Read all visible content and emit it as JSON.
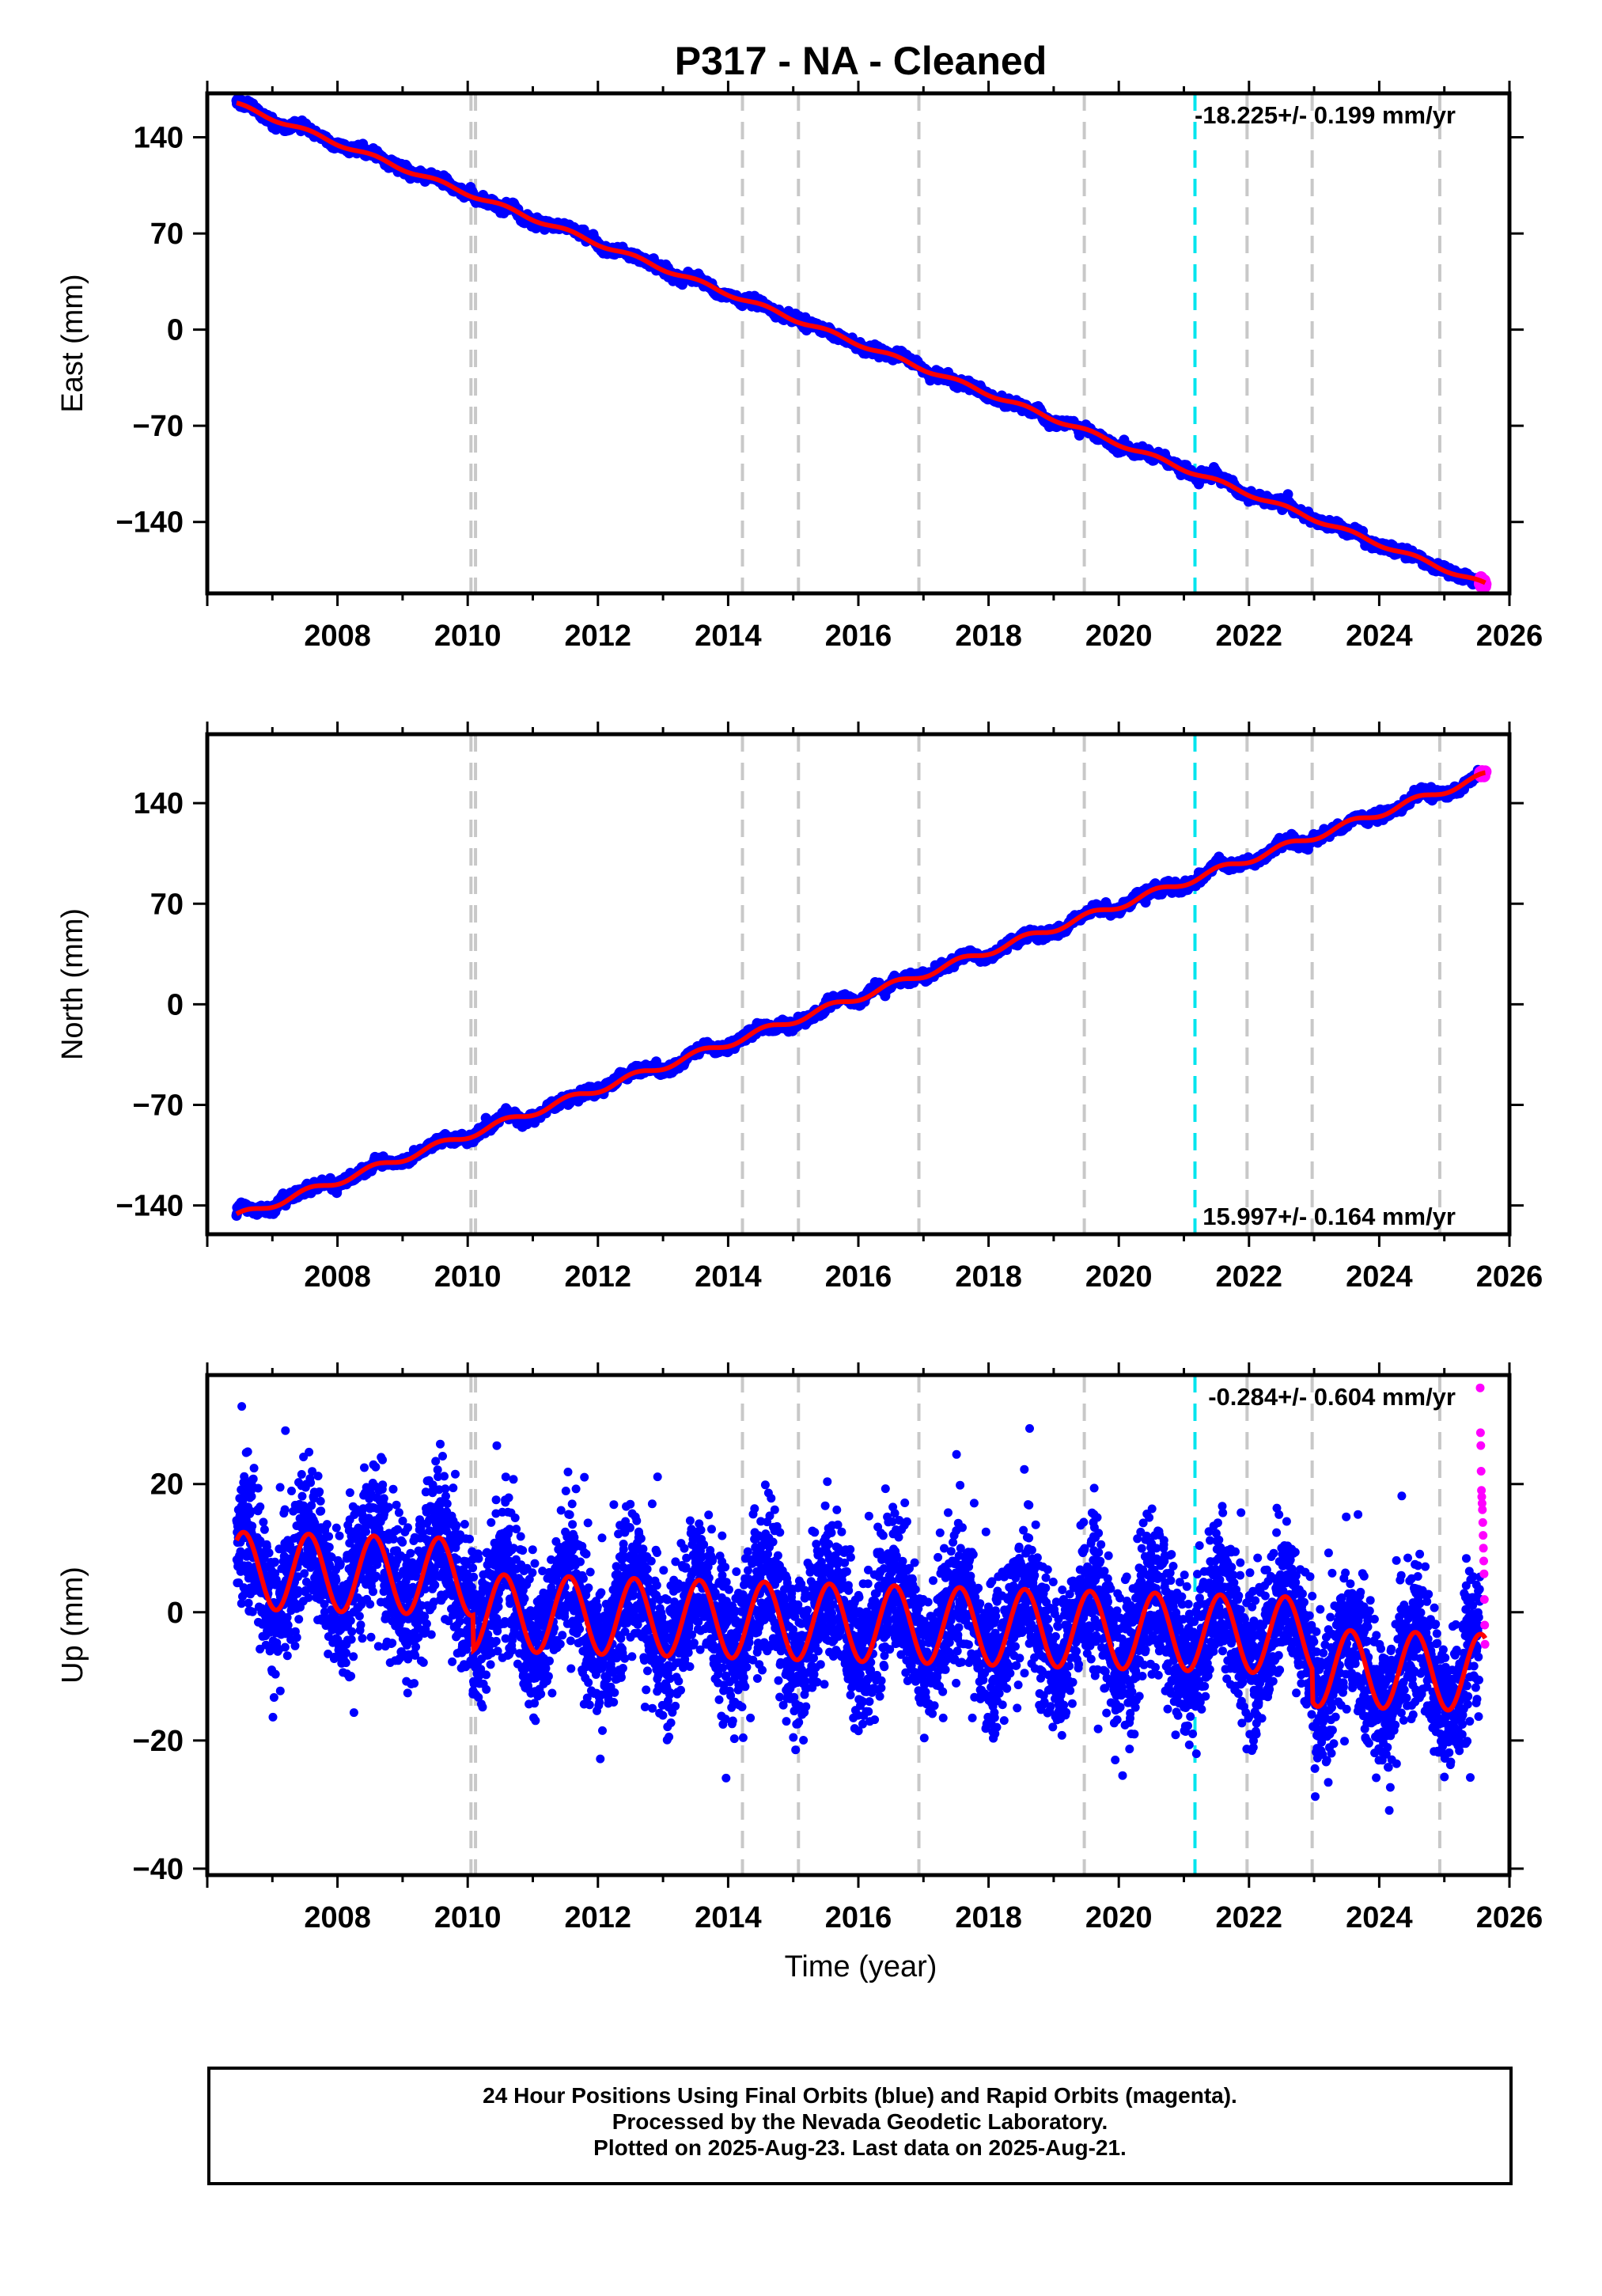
{
  "title": "P317  - NA - Cleaned",
  "xlabel": "Time (year)",
  "footer": {
    "line1": "24 Hour Positions Using Final Orbits (blue) and Rapid Orbits (magenta).",
    "line2": "Processed by the Nevada Geodetic Laboratory.",
    "line3": "Plotted on 2025-Aug-23. Last data on 2025-Aug-21."
  },
  "colors": {
    "final_orbits": "#0000ff",
    "rapid_orbits": "#ff00ff",
    "model_fit": "#ff0000",
    "event_gray": "#c8c8c8",
    "event_cyan": "#00e5ee"
  },
  "chart_data": [
    {
      "type": "scatter",
      "component": "east",
      "ylabel": "East (mm)",
      "rate_label": "-18.225+/- 0.199 mm/yr",
      "xlim": [
        2006.0,
        2026.0
      ],
      "ylim": [
        -192,
        172
      ],
      "xticks": [
        2008,
        2010,
        2012,
        2014,
        2016,
        2018,
        2020,
        2022,
        2024,
        2026
      ],
      "yticks": [
        -140,
        -70,
        0,
        70,
        140
      ],
      "vlines_gray": [
        2010.05,
        2010.12,
        2014.22,
        2015.08,
        2016.93,
        2019.47,
        2021.97,
        2022.97,
        2024.93
      ],
      "vlines_cyan": [
        2021.17
      ],
      "model": {
        "t0": 2006.5,
        "y0": 163.0,
        "rate": -18.225,
        "annual_amp": 1.5,
        "noise": 1.3
      },
      "series": [
        {
          "name": "Final Orbits",
          "color": "#0000ff",
          "x_range": [
            2006.45,
            2025.55
          ]
        },
        {
          "name": "Rapid Orbits",
          "color": "#ff00ff",
          "x_range": [
            2025.55,
            2025.63
          ]
        }
      ]
    },
    {
      "type": "scatter",
      "component": "north",
      "ylabel": "North (mm)",
      "rate_label": "15.997+/- 0.164 mm/yr",
      "xlim": [
        2006.0,
        2026.0
      ],
      "ylim": [
        -160,
        188
      ],
      "xticks": [
        2008,
        2010,
        2012,
        2014,
        2016,
        2018,
        2020,
        2022,
        2024,
        2026
      ],
      "yticks": [
        -140,
        -70,
        0,
        70,
        140
      ],
      "vlines_gray": [
        2010.05,
        2010.12,
        2014.22,
        2015.08,
        2016.93,
        2019.47,
        2021.97,
        2022.97,
        2024.93
      ],
      "vlines_cyan": [
        2021.17
      ],
      "model": {
        "t0": 2006.5,
        "y0": -147.0,
        "rate": 15.997,
        "annual_amp": 2.5,
        "noise": 1.3
      },
      "series": [
        {
          "name": "Final Orbits",
          "color": "#0000ff",
          "x_range": [
            2006.45,
            2025.55
          ]
        },
        {
          "name": "Rapid Orbits",
          "color": "#ff00ff",
          "x_range": [
            2025.55,
            2025.63
          ]
        }
      ]
    },
    {
      "type": "scatter",
      "component": "up",
      "ylabel": "Up (mm)",
      "rate_label": "-0.284+/- 0.604 mm/yr",
      "xlim": [
        2006.0,
        2026.0
      ],
      "ylim": [
        -41,
        37
      ],
      "xticks": [
        2008,
        2010,
        2012,
        2014,
        2016,
        2018,
        2020,
        2022,
        2024,
        2026
      ],
      "yticks": [
        -40,
        -20,
        0,
        20
      ],
      "vlines_gray": [
        2010.05,
        2010.12,
        2014.22,
        2015.08,
        2016.93,
        2019.47,
        2021.97,
        2022.97,
        2024.93
      ],
      "vlines_cyan": [
        2021.17
      ],
      "model": {
        "t0": 2006.5,
        "y0": 6.5,
        "rate": -0.284,
        "annual_amp": 6.0,
        "noise": 5.5
      },
      "segments": [
        {
          "from": 2006.45,
          "to": 2010.08,
          "offset": 0.0
        },
        {
          "from": 2010.08,
          "to": 2022.97,
          "offset": -5.5
        },
        {
          "from": 2022.97,
          "to": 2025.6,
          "offset": -10.5
        }
      ],
      "series": [
        {
          "name": "Final Orbits",
          "color": "#0000ff",
          "x_range": [
            2006.45,
            2025.55
          ]
        },
        {
          "name": "Rapid Orbits",
          "color": "#ff00ff",
          "x_range": [
            2025.55,
            2025.63
          ]
        }
      ],
      "rapid_values": [
        35,
        28,
        26,
        22,
        19,
        18,
        17,
        16,
        14,
        12,
        10,
        8,
        6,
        2,
        -2,
        -5
      ]
    }
  ]
}
